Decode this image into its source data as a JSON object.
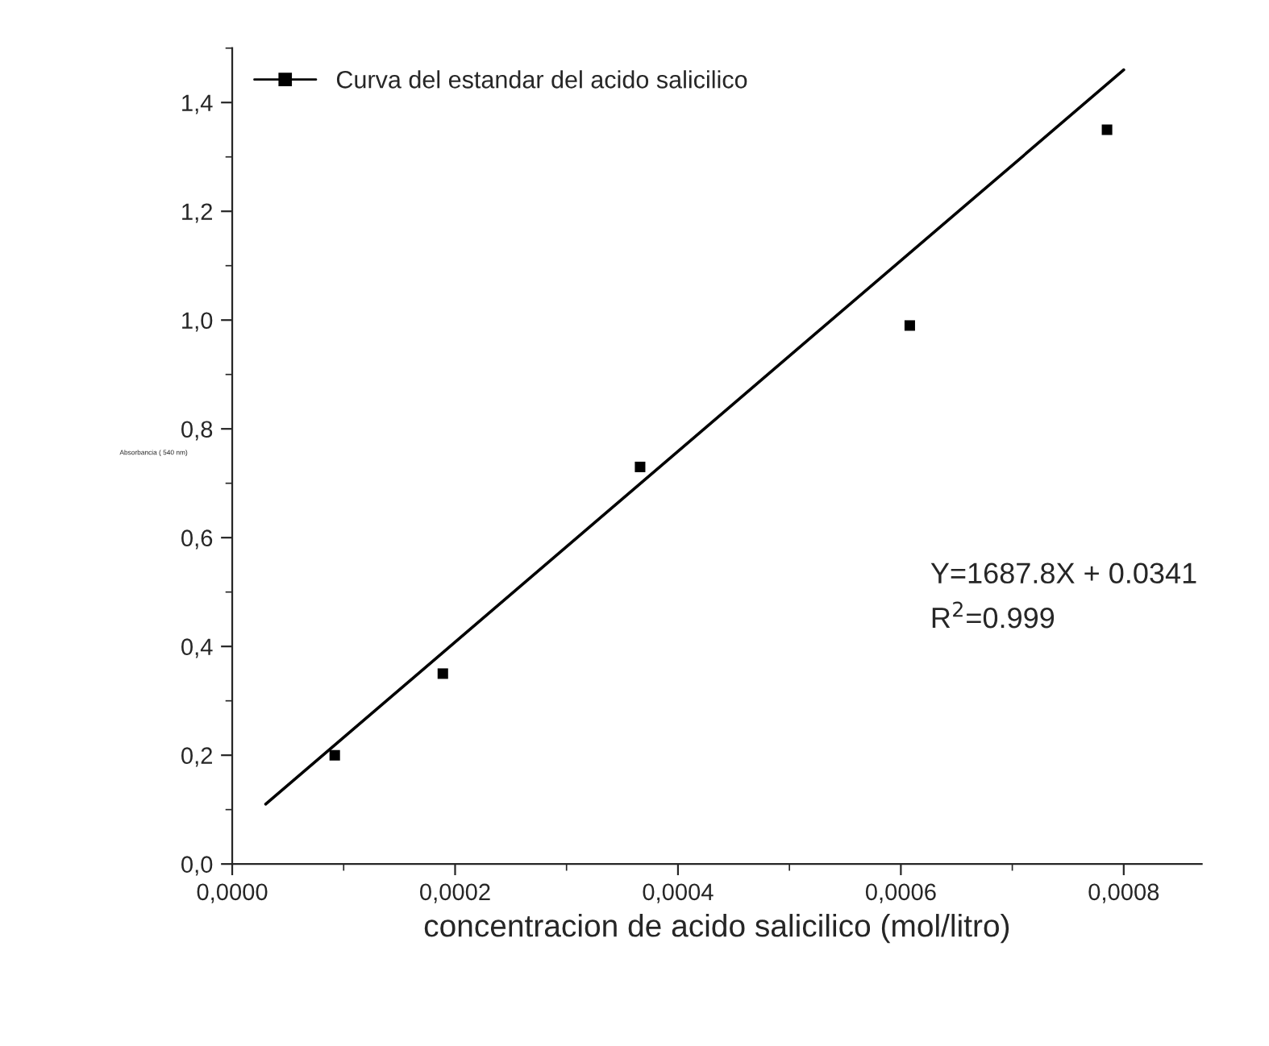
{
  "chart_data": {
    "type": "scatter",
    "xlabel": "concentracion de acido salicilico (mol/litro)",
    "ylabel": "Absorbancia ( 540 nm)",
    "series": [
      {
        "name": "Curva del estandar del acido salicilico",
        "color": "#000000",
        "marker": "square",
        "x": [
          9.2e-05,
          0.000189,
          0.000366,
          0.000608,
          0.000785
        ],
        "values": [
          0.2,
          0.35,
          0.73,
          0.99,
          1.35
        ]
      },
      {
        "type": "line",
        "color": "#000000",
        "x": [
          3e-05,
          0.0008
        ],
        "values": [
          0.11,
          1.46
        ]
      }
    ],
    "xlim": [
      0,
      0.00087
    ],
    "ylim": [
      0,
      1.5
    ],
    "xticks": [
      {
        "value": 0,
        "label": "0,0000"
      },
      {
        "value": 0.0002,
        "label": "0,0002"
      },
      {
        "value": 0.0004,
        "label": "0,0004"
      },
      {
        "value": 0.0006,
        "label": "0,0006"
      },
      {
        "value": 0.0008,
        "label": "0,0008"
      }
    ],
    "yticks": [
      {
        "value": 0,
        "label": "0,0"
      },
      {
        "value": 0.2,
        "label": "0,2"
      },
      {
        "value": 0.4,
        "label": "0,4"
      },
      {
        "value": 0.6,
        "label": "0,6"
      },
      {
        "value": 0.8,
        "label": "0,8"
      },
      {
        "value": 1.0,
        "label": "1,0"
      },
      {
        "value": 1.2,
        "label": "1,2"
      },
      {
        "value": 1.4,
        "label": "1,4"
      }
    ],
    "annotations": [
      "Y=1687.8X + 0.0341",
      "R$^{2}$=0.999"
    ],
    "legend": "top left",
    "grid": false
  }
}
